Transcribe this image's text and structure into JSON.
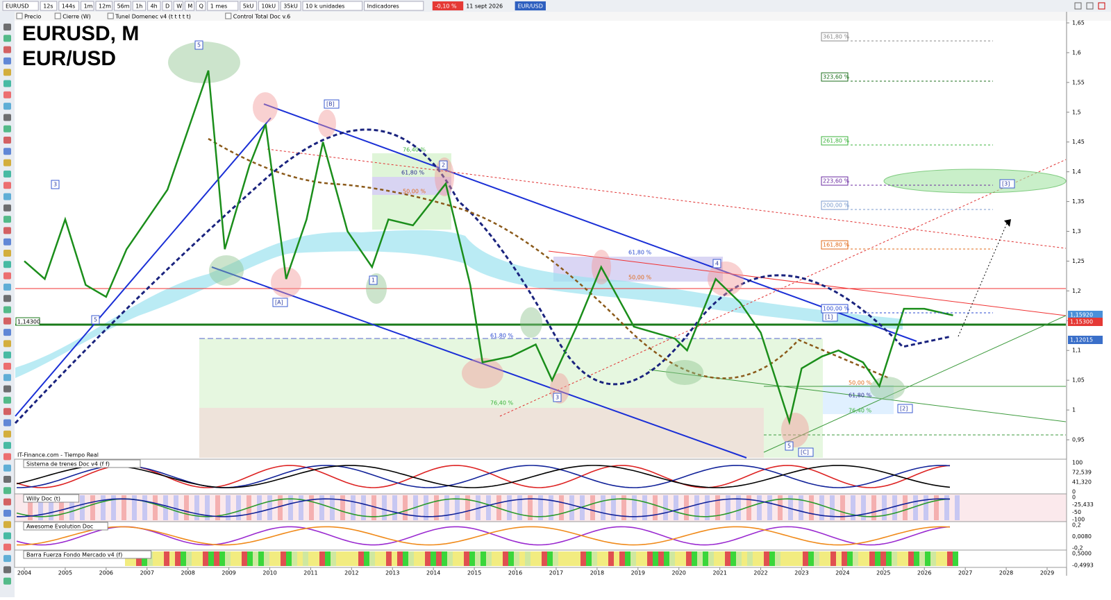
{
  "toolbar": {
    "symbol": "EURUSD",
    "buttons": [
      "12s",
      "144s",
      "1m",
      "12m",
      "56m",
      "1h",
      "4h",
      "D",
      "W",
      "M",
      "Q"
    ],
    "period": "1 mes",
    "units": [
      "5kU",
      "10kU",
      "35kU"
    ],
    "size": "10 k unidades",
    "indicators": "Indicadores",
    "change": "-0,10 %",
    "date": "11 sept 2026",
    "pair": "EUR/USD"
  },
  "legend_row": [
    "Precio",
    "Cierre (W)",
    "Tunel Domenec v4 (t t t t t)",
    "Control Total Doc v.6"
  ],
  "chart": {
    "title": "EURUSD, M",
    "subtitle": "EUR/USD",
    "source": "IT-Finance.com - Tiempo Real",
    "price_ticks": [
      "1,65",
      "1,6",
      "1,55",
      "1,5",
      "1,45",
      "1,4",
      "1,35",
      "1,3",
      "1,25",
      "1,2",
      "1,15",
      "1,1",
      "1,05",
      "1",
      "0,95"
    ],
    "years": [
      "2004",
      "2005",
      "2006",
      "2007",
      "2008",
      "2009",
      "2010",
      "2011",
      "2012",
      "2013",
      "2014",
      "2015",
      "2016",
      "2017",
      "2018",
      "2019",
      "2020",
      "2021",
      "2022",
      "2023",
      "2024",
      "2025",
      "2026",
      "2027",
      "2028",
      "2029"
    ],
    "price_labels": [
      "1,15920",
      "1,15300",
      "1,12015"
    ],
    "left_label": "1,14300",
    "fib_labels": [
      "361,80 %",
      "323,60 %",
      "261,80 %",
      "223,60 %",
      "200,00 %",
      "161,80 %",
      "100,00 %",
      "76,40 %",
      "61,80 %",
      "50,00 %",
      "61,80 %",
      "50,00 %",
      "76,40 %",
      "61,80 %",
      "50,00 %",
      "61,80 %",
      "76,40 %"
    ],
    "wave_labels": [
      "5",
      "3",
      "5",
      "[B]",
      "[A]",
      "1",
      "2",
      "3",
      "4",
      "[1]",
      "5",
      "[C]",
      "[2]",
      "[3]"
    ],
    "price": {
      "x": [
        2004.0,
        2004.5,
        2005.0,
        2005.5,
        2006.0,
        2006.5,
        2007.0,
        2007.5,
        2008.0,
        2008.5,
        2008.9,
        2009.5,
        2009.9,
        2010.4,
        2010.9,
        2011.3,
        2011.9,
        2012.5,
        2012.9,
        2013.5,
        2014.3,
        2014.9,
        2015.2,
        2015.9,
        2016.5,
        2016.9,
        2017.5,
        2018.1,
        2018.9,
        2019.9,
        2020.2,
        2020.9,
        2021.5,
        2022.0,
        2022.7,
        2023.0,
        2023.5,
        2023.9,
        2024.5,
        2024.9,
        2025.5,
        2026.0,
        2026.7
      ],
      "values": [
        1.25,
        1.22,
        1.32,
        1.21,
        1.19,
        1.27,
        1.32,
        1.37,
        1.47,
        1.57,
        1.27,
        1.41,
        1.48,
        1.22,
        1.32,
        1.45,
        1.3,
        1.24,
        1.32,
        1.31,
        1.38,
        1.21,
        1.08,
        1.09,
        1.11,
        1.05,
        1.14,
        1.24,
        1.14,
        1.12,
        1.1,
        1.22,
        1.18,
        1.13,
        0.98,
        1.07,
        1.09,
        1.1,
        1.08,
        1.04,
        1.17,
        1.17,
        1.159
      ]
    }
  },
  "panels": [
    {
      "name": "Sistema de trenes Doc v4 (f f)",
      "ticks": [
        "100",
        "72,539",
        "41,320",
        "0"
      ]
    },
    {
      "name": "Willy Doc (t)",
      "ticks": [
        "0",
        "-25,433",
        "-50",
        "-100"
      ]
    },
    {
      "name": "Awesome Evolution Doc",
      "ticks": [
        "0,2",
        "0,0080",
        "-0,2"
      ]
    },
    {
      "name": "Barra Fuerza Fondo Mercado v4 (f)",
      "ticks": [
        "0,5000",
        "-0,4993"
      ]
    }
  ]
}
